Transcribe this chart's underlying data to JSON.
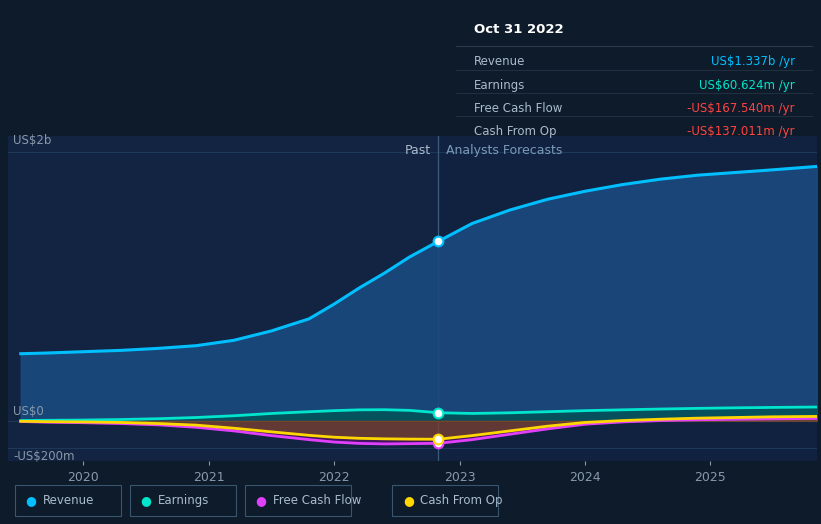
{
  "bg_color": "#0d1b2a",
  "plot_bg_color": "#112240",
  "grid_color": "#1e3a5a",
  "tooltip": {
    "title": "Oct 31 2022",
    "rows": [
      {
        "label": "Revenue",
        "value": "US$1.337b /yr",
        "color": "#00bfff"
      },
      {
        "label": "Earnings",
        "value": "US$60.624m /yr",
        "color": "#00e5cc"
      },
      {
        "label": "Free Cash Flow",
        "value": "-US$167.540m /yr",
        "color": "#ff4444"
      },
      {
        "label": "Cash From Op",
        "value": "-US$137.011m /yr",
        "color": "#ff4444"
      }
    ]
  },
  "ylabel_top": "US$2b",
  "ylabel_mid": "US$0",
  "ylabel_bot": "-US$200m",
  "past_label": "Past",
  "forecast_label": "Analysts Forecasts",
  "divider_x": 2022.83,
  "xlim": [
    2019.4,
    2025.85
  ],
  "ylim": [
    -0.3,
    2.12
  ],
  "y_zero": 0.0,
  "y_2b": 2.0,
  "y_neg200m": -0.2,
  "legend_items": [
    {
      "label": "Revenue",
      "color": "#00bfff"
    },
    {
      "label": "Earnings",
      "color": "#00e5cc"
    },
    {
      "label": "Free Cash Flow",
      "color": "#e040fb"
    },
    {
      "label": "Cash From Op",
      "color": "#ffd700"
    }
  ],
  "revenue": {
    "x": [
      2019.5,
      2019.7,
      2020.0,
      2020.3,
      2020.6,
      2020.9,
      2021.2,
      2021.5,
      2021.8,
      2022.0,
      2022.2,
      2022.4,
      2022.6,
      2022.83,
      2023.1,
      2023.4,
      2023.7,
      2024.0,
      2024.3,
      2024.6,
      2024.9,
      2025.2,
      2025.5,
      2025.85
    ],
    "y": [
      0.5,
      0.505,
      0.515,
      0.525,
      0.54,
      0.56,
      0.6,
      0.67,
      0.76,
      0.87,
      0.99,
      1.1,
      1.22,
      1.337,
      1.47,
      1.57,
      1.65,
      1.71,
      1.76,
      1.8,
      1.83,
      1.85,
      1.87,
      1.895
    ],
    "color": "#00bfff",
    "fill_color": "#1a4a80",
    "linewidth": 2.2
  },
  "earnings": {
    "x": [
      2019.5,
      2019.7,
      2020.0,
      2020.3,
      2020.6,
      2020.9,
      2021.2,
      2021.5,
      2021.8,
      2022.0,
      2022.2,
      2022.4,
      2022.6,
      2022.83,
      2023.1,
      2023.4,
      2023.7,
      2024.0,
      2024.3,
      2024.6,
      2024.9,
      2025.2,
      2025.5,
      2025.85
    ],
    "y": [
      0.002,
      0.004,
      0.006,
      0.01,
      0.016,
      0.025,
      0.038,
      0.055,
      0.068,
      0.076,
      0.082,
      0.083,
      0.078,
      0.0606,
      0.055,
      0.06,
      0.068,
      0.076,
      0.082,
      0.088,
      0.093,
      0.097,
      0.1,
      0.103
    ],
    "color": "#00e5cc",
    "fill_color": "#005555",
    "linewidth": 2.0
  },
  "fcf": {
    "x": [
      2019.5,
      2019.7,
      2020.0,
      2020.3,
      2020.6,
      2020.9,
      2021.2,
      2021.5,
      2021.8,
      2022.0,
      2022.2,
      2022.4,
      2022.6,
      2022.83,
      2023.1,
      2023.4,
      2023.7,
      2024.0,
      2024.3,
      2024.6,
      2024.9,
      2025.2,
      2025.5,
      2025.85
    ],
    "y": [
      -0.005,
      -0.01,
      -0.014,
      -0.02,
      -0.03,
      -0.048,
      -0.075,
      -0.11,
      -0.14,
      -0.158,
      -0.168,
      -0.172,
      -0.17,
      -0.1675,
      -0.14,
      -0.1,
      -0.06,
      -0.025,
      -0.008,
      0.002,
      0.008,
      0.012,
      0.015,
      0.018
    ],
    "color": "#e040fb",
    "fill_color": "#6a0a7a",
    "linewidth": 2.0
  },
  "cashfromop": {
    "x": [
      2019.5,
      2019.7,
      2020.0,
      2020.3,
      2020.6,
      2020.9,
      2021.2,
      2021.5,
      2021.8,
      2022.0,
      2022.2,
      2022.4,
      2022.6,
      2022.83,
      2023.1,
      2023.4,
      2023.7,
      2024.0,
      2024.3,
      2024.6,
      2024.9,
      2025.2,
      2025.5,
      2025.85
    ],
    "y": [
      -0.003,
      -0.006,
      -0.008,
      -0.012,
      -0.02,
      -0.032,
      -0.055,
      -0.082,
      -0.108,
      -0.122,
      -0.13,
      -0.134,
      -0.136,
      -0.137,
      -0.11,
      -0.075,
      -0.04,
      -0.012,
      0.002,
      0.012,
      0.02,
      0.025,
      0.03,
      0.033
    ],
    "color": "#ffd700",
    "fill_color": "#8a6500",
    "linewidth": 2.0
  }
}
